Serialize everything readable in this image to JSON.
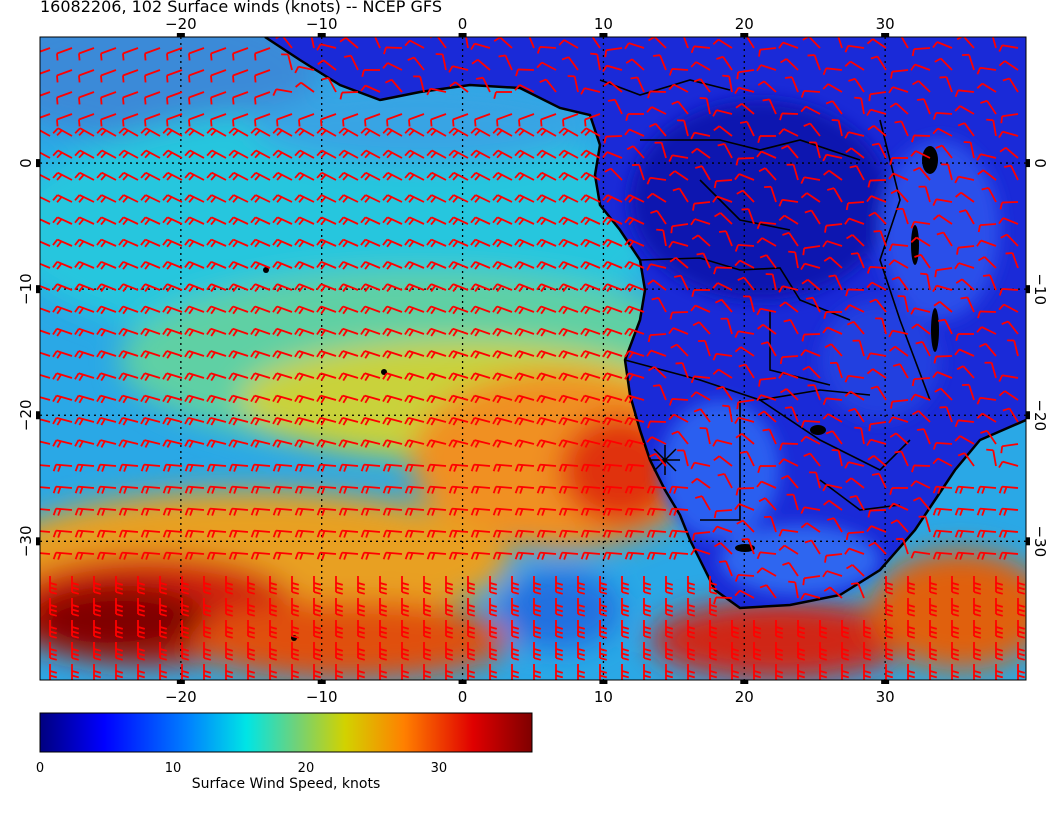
{
  "title": "16082206, 102 Surface winds (knots) -- NCEP GFS",
  "map": {
    "lon_range": [
      -30,
      40
    ],
    "lat_range": [
      -41,
      10
    ],
    "lon_ticks": [
      -20,
      -10,
      0,
      10,
      20,
      30
    ],
    "lat_ticks": [
      0,
      -10,
      -20,
      -30
    ],
    "lon_tick_labels": [
      "−20",
      "−10",
      "0",
      "10",
      "20",
      "30"
    ],
    "lat_tick_labels": [
      "0",
      "−10",
      "−20",
      "−30"
    ],
    "graticule": "dotted"
  },
  "colorbar": {
    "title": "Surface Wind Speed, knots",
    "range": [
      0,
      37
    ],
    "ticks": [
      0,
      10,
      20,
      30
    ],
    "tick_labels": [
      "0",
      "10",
      "20",
      "30"
    ],
    "colormap": [
      "#00007f",
      "#0000ff",
      "#0080ff",
      "#00e5e5",
      "#6fd27a",
      "#d2d200",
      "#ff8000",
      "#e00000",
      "#7f0000"
    ]
  },
  "wind_barbs": {
    "color": "#ff0000"
  }
}
